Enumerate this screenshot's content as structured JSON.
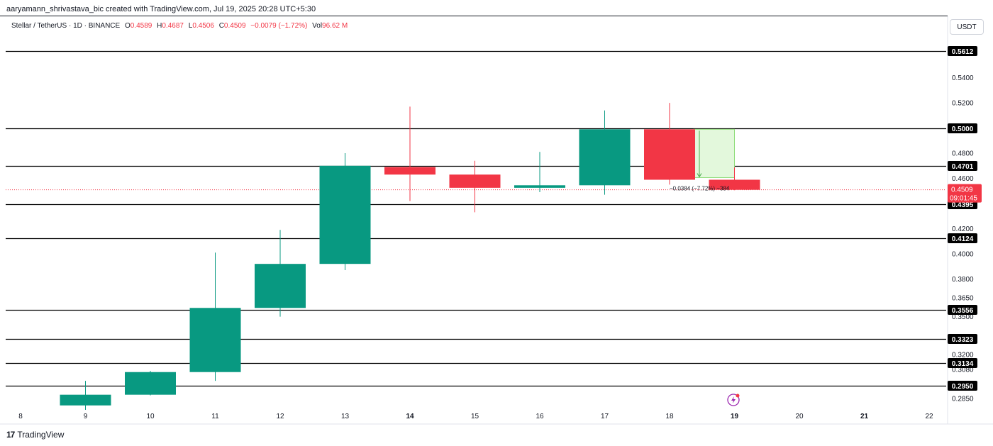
{
  "header": {
    "attribution": "aaryamann_shrivastava_bic created with TradingView.com, Jul 19, 2025 20:28 UTC+5:30"
  },
  "legend": {
    "symbol": "Stellar / TetherUS · 1D · BINANCE",
    "open_label": "O",
    "open": "0.4589",
    "high_label": "H",
    "high": "0.4687",
    "low_label": "L",
    "low": "0.4506",
    "close_label": "C",
    "close": "0.4509",
    "change": "−0.0079 (−1.72%)",
    "vol_label": "Vol",
    "vol": "96.62 M"
  },
  "price_scale": {
    "unit": "USDT"
  },
  "footer": {
    "brand": "TradingView"
  },
  "colors": {
    "up": "#089981",
    "down": "#f23645",
    "level_line": "#000000",
    "projection_fill": "#e3f8dc",
    "projection_stroke": "#8fdc7a"
  },
  "chart_data": {
    "type": "candlestick",
    "x_ticks": [
      "8",
      "9",
      "10",
      "11",
      "12",
      "13",
      "14",
      "15",
      "16",
      "17",
      "18",
      "19",
      "20",
      "21",
      "22"
    ],
    "x_ticks_bold": [
      "14",
      "19",
      "21"
    ],
    "y_range": [
      0.276,
      0.582
    ],
    "y_ticks": [
      "0.5400",
      "0.5200",
      "0.4800",
      "0.4600",
      "0.4200",
      "0.4000",
      "0.3800",
      "0.3650",
      "0.3500",
      "0.3200",
      "0.3080",
      "0.2850"
    ],
    "candles": [
      {
        "day": "9",
        "open": 0.2795,
        "high": 0.299,
        "low": 0.276,
        "close": 0.288
      },
      {
        "day": "10",
        "open": 0.288,
        "high": 0.307,
        "low": 0.2875,
        "close": 0.306
      },
      {
        "day": "11",
        "open": 0.306,
        "high": 0.401,
        "low": 0.299,
        "close": 0.357
      },
      {
        "day": "12",
        "open": 0.357,
        "high": 0.419,
        "low": 0.35,
        "close": 0.392
      },
      {
        "day": "13",
        "open": 0.392,
        "high": 0.48,
        "low": 0.387,
        "close": 0.47
      },
      {
        "day": "14",
        "open": 0.469,
        "high": 0.517,
        "low": 0.442,
        "close": 0.463
      },
      {
        "day": "15",
        "open": 0.463,
        "high": 0.474,
        "low": 0.433,
        "close": 0.4525
      },
      {
        "day": "16",
        "open": 0.4525,
        "high": 0.481,
        "low": 0.449,
        "close": 0.4545
      },
      {
        "day": "17",
        "open": 0.4545,
        "high": 0.514,
        "low": 0.447,
        "close": 0.499
      },
      {
        "day": "18",
        "open": 0.499,
        "high": 0.52,
        "low": 0.455,
        "close": 0.4589
      },
      {
        "day": "19",
        "open": 0.4589,
        "high": 0.4687,
        "low": 0.4506,
        "close": 0.4509
      }
    ],
    "levels": [
      "0.5612",
      "0.5000",
      "0.4701",
      "0.4395",
      "0.4124",
      "0.3556",
      "0.3323",
      "0.3134",
      "0.2950"
    ],
    "current_price": {
      "value": "0.4509",
      "countdown": "09:01:45"
    },
    "projection": {
      "from_day": "18",
      "to_day": "19",
      "top": 0.499,
      "bottom": 0.4606,
      "label": "−0.0384 (−7.72%) −384"
    }
  }
}
